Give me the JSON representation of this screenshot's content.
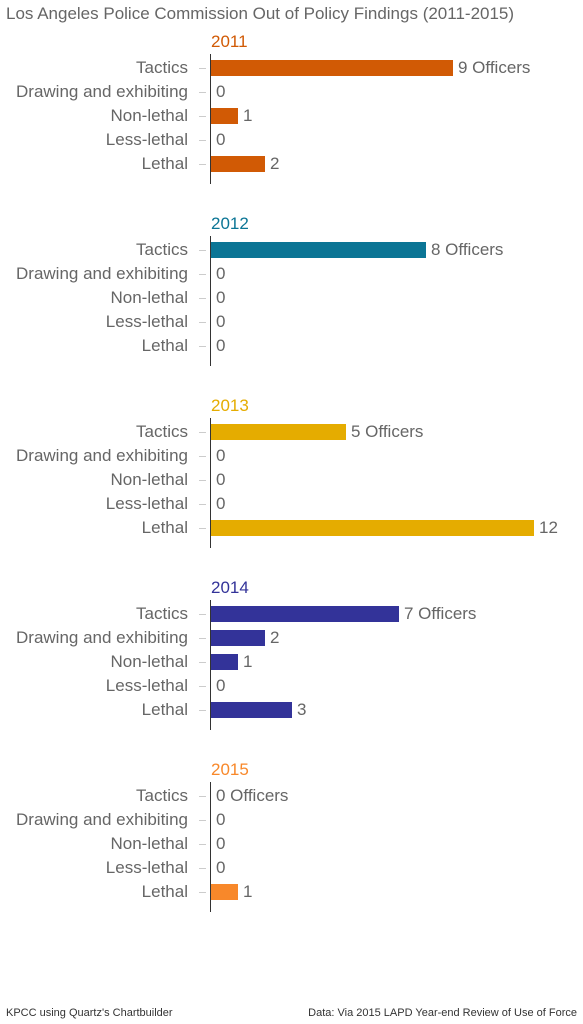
{
  "chart_data": {
    "type": "bar",
    "orientation": "horizontal",
    "title": "Los Angeles Police Commission Out of Policy Findings (2011-2015)",
    "categories": [
      "Tactics",
      "Drawing and exhibiting",
      "Non-lethal",
      "Less-lethal",
      "Lethal"
    ],
    "xlim": [
      0,
      12
    ],
    "grid": false,
    "panels": [
      {
        "year": "2011",
        "color": "#d15a05",
        "values": [
          9,
          0,
          1,
          0,
          2
        ],
        "labels": [
          "9 Officers",
          "0",
          "1",
          "0",
          "2"
        ]
      },
      {
        "year": "2012",
        "color": "#0b7595",
        "values": [
          8,
          0,
          0,
          0,
          0
        ],
        "labels": [
          "8 Officers",
          "0",
          "0",
          "0",
          "0"
        ]
      },
      {
        "year": "2013",
        "color": "#e5ac00",
        "values": [
          5,
          0,
          0,
          0,
          12
        ],
        "labels": [
          "5 Officers",
          "0",
          "0",
          "0",
          "12"
        ]
      },
      {
        "year": "2014",
        "color": "#333399",
        "values": [
          7,
          2,
          1,
          0,
          3
        ],
        "labels": [
          "7 Officers",
          "2",
          "1",
          "0",
          "3"
        ]
      },
      {
        "year": "2015",
        "color": "#f8882a",
        "values": [
          0,
          0,
          0,
          0,
          1
        ],
        "labels": [
          "0 Officers",
          "0",
          "0",
          "0",
          "1"
        ]
      }
    ]
  },
  "footer": {
    "left": "KPCC using Quartz's Chartbuilder",
    "right": "Data: Via 2015 LAPD Year-end Review of Use of Force"
  }
}
